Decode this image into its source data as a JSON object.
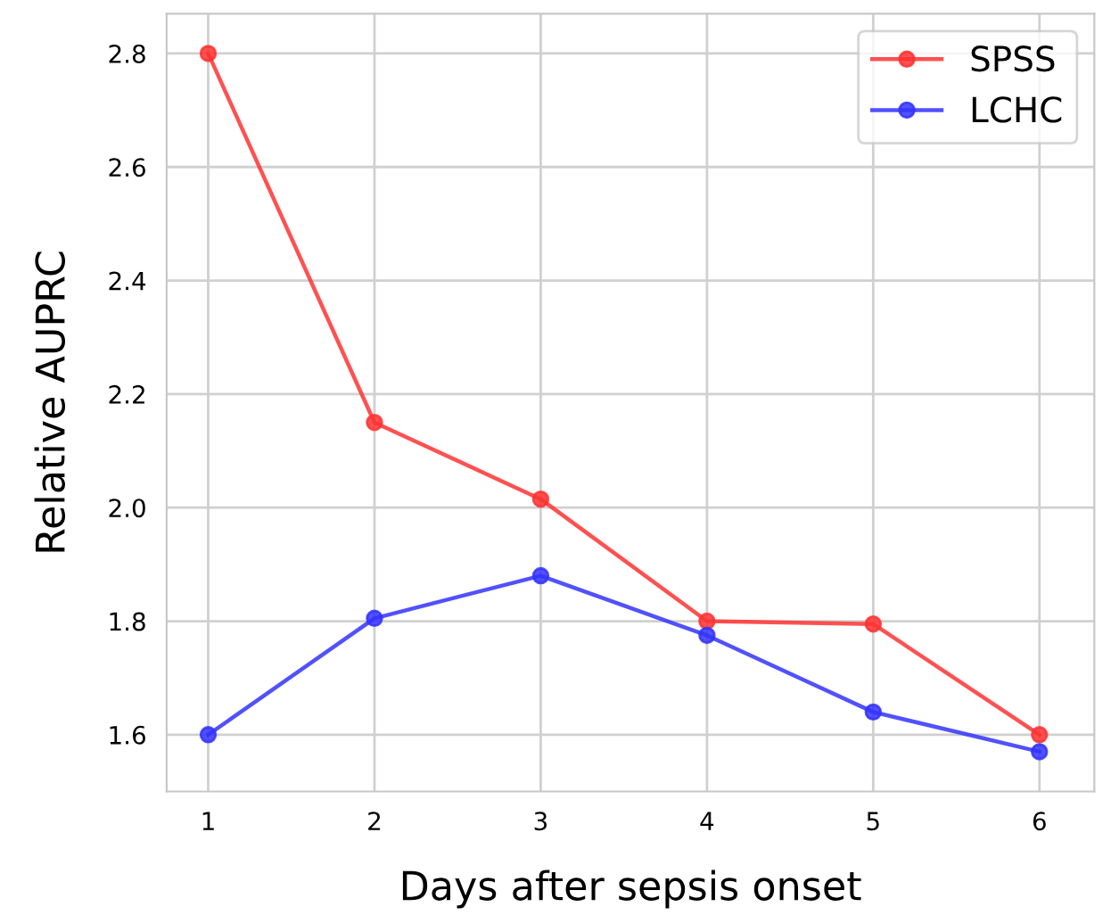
{
  "chart_data": {
    "type": "line",
    "xlabel": "Days after sepsis onset",
    "ylabel": "Relative AUPRC",
    "x": [
      1,
      2,
      3,
      4,
      5,
      6
    ],
    "series": [
      {
        "name": "SPSS",
        "color": "#ff3333",
        "values": [
          2.8,
          2.15,
          2.015,
          1.8,
          1.795,
          1.6
        ]
      },
      {
        "name": "LCHC",
        "color": "#3333ff",
        "values": [
          1.6,
          1.805,
          1.88,
          1.775,
          1.64,
          1.57
        ]
      }
    ],
    "xlim": [
      0.75,
      6.33
    ],
    "ylim": [
      1.5,
      2.87
    ],
    "xticks": [
      1,
      2,
      3,
      4,
      5,
      6
    ],
    "yticks": [
      1.6,
      1.8,
      {
        "value": 2.0,
        "label": "2.0"
      },
      2.2,
      2.4,
      2.6,
      2.8
    ],
    "grid": true,
    "legend": "top right",
    "marker": "circle",
    "line_style": "solid"
  }
}
